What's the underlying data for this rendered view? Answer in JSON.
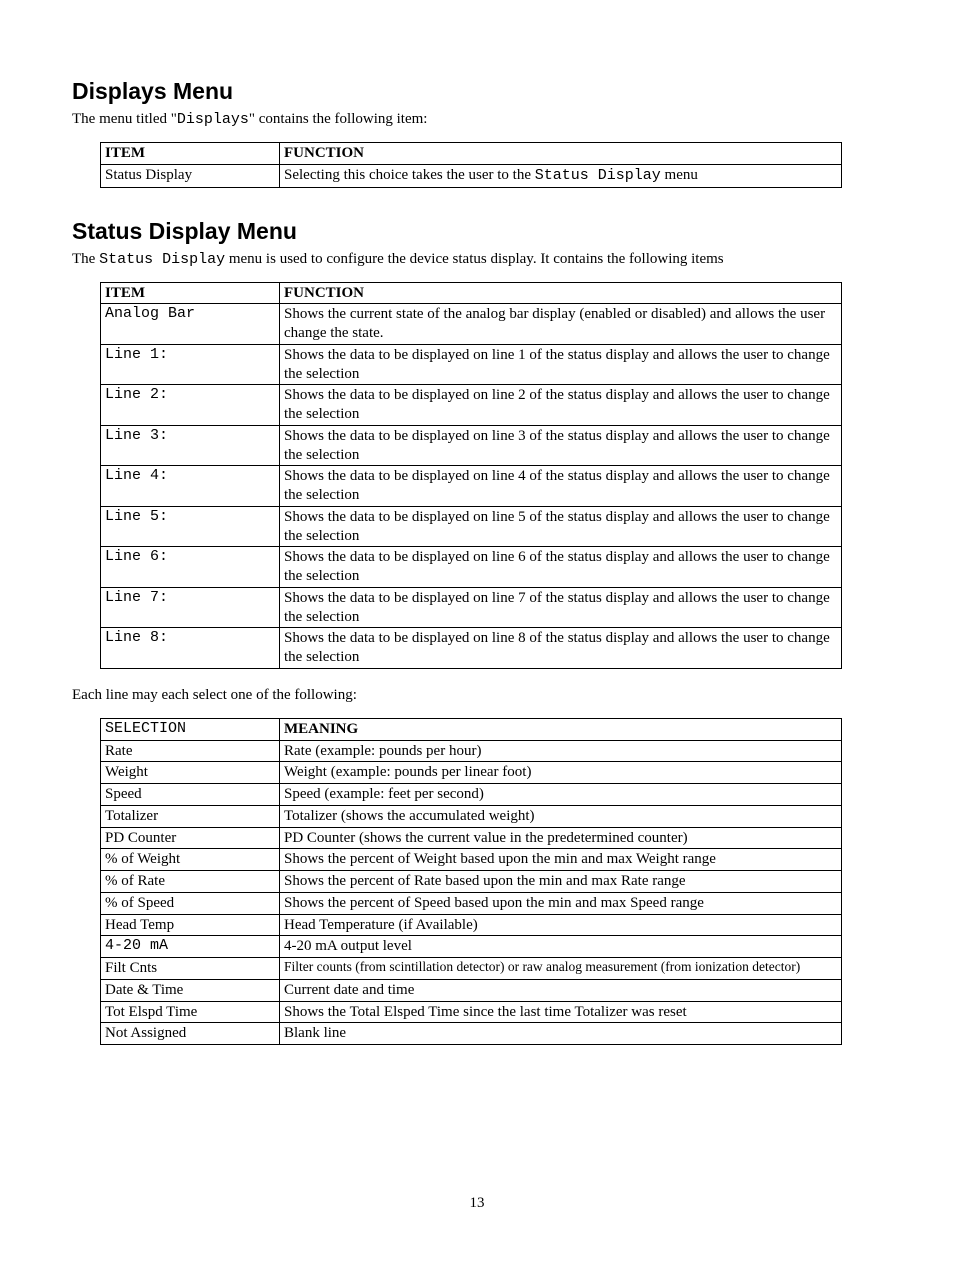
{
  "section1": {
    "title": "Displays Menu",
    "lead_pre": "The menu titled \"",
    "lead_mono": "Displays",
    "lead_post": "\" contains the following item:",
    "table": {
      "head_item": "ITEM",
      "head_func": "FUNCTION",
      "rows": [
        {
          "item": "Status Display",
          "func_pre": "Selecting this choice takes the user to the ",
          "func_mono": "Status Display",
          "func_post": "  menu"
        }
      ]
    }
  },
  "section2": {
    "title": "Status Display Menu",
    "lead_pre": "The ",
    "lead_mono": "Status Display",
    "lead_post": " menu is used to configure the device status display. It contains the following items",
    "table": {
      "head_item": "ITEM",
      "head_func": "FUNCTION",
      "rows": [
        {
          "item": "Analog Bar",
          "item_mono": true,
          "func": "Shows the current state of the analog bar display (enabled or disabled) and allows the user change the state."
        },
        {
          "item": "Line 1:",
          "item_mono": true,
          "func": "Shows the data to be displayed on line 1 of the status display and allows the user to change the selection"
        },
        {
          "item": "Line 2:",
          "item_mono": true,
          "func": "Shows the data to be displayed on line 2 of the status display and allows the user to change the selection"
        },
        {
          "item": "Line 3:",
          "item_mono": true,
          "func": "Shows the data to be displayed on line 3 of the status display and allows the user to change the selection"
        },
        {
          "item": "Line 4:",
          "item_mono": true,
          "func": "Shows the data to be displayed on line 4 of the status display and allows the user to change the selection"
        },
        {
          "item": "Line 5:",
          "item_mono": true,
          "func": "Shows the data to be displayed on line 5 of the status display and allows the user to change the selection"
        },
        {
          "item": "Line 6:",
          "item_mono": true,
          "func": "Shows the data to be displayed on line 6 of the status display and allows the user to change the selection"
        },
        {
          "item": "Line 7:",
          "item_mono": true,
          "func": "Shows the data to be displayed on line 7 of the status display and allows the user to change the selection"
        },
        {
          "item": "Line 8:",
          "item_mono": true,
          "func": "Shows the data to be displayed on line 8 of the status display and allows the user to change the selection"
        }
      ]
    }
  },
  "note": "Each line may each select one of the following:",
  "section3": {
    "table": {
      "head_sel": "SELECTION",
      "head_mean": "MEANING",
      "rows": [
        {
          "sel": "Rate",
          "sel_mono": false,
          "mean": "Rate (example: pounds per hour)"
        },
        {
          "sel": "Weight",
          "sel_mono": false,
          "mean": "Weight (example: pounds per linear foot)"
        },
        {
          "sel": "Speed",
          "sel_mono": false,
          "mean": "Speed (example: feet per second)"
        },
        {
          "sel": "Totalizer",
          "sel_mono": false,
          "mean": "Totalizer (shows the accumulated weight)"
        },
        {
          "sel": "PD Counter",
          "sel_mono": false,
          "mean": "PD Counter (shows the current value in the predetermined counter)"
        },
        {
          "sel": "% of Weight",
          "sel_mono": false,
          "mean": "Shows the percent of Weight based upon the min and max Weight range"
        },
        {
          "sel": "% of Rate",
          "sel_mono": false,
          "mean": "Shows the percent of Rate based upon the min and max Rate range"
        },
        {
          "sel": "% of Speed",
          "sel_mono": false,
          "mean": "Shows the percent of Speed based upon the min and max Speed range"
        },
        {
          "sel": "Head Temp",
          "sel_mono": false,
          "mean": "Head Temperature (if Available)"
        },
        {
          "sel": "4-20 mA",
          "sel_mono": true,
          "mean": "4-20 mA output level"
        },
        {
          "sel": "Filt Cnts",
          "sel_mono": false,
          "mean": "Filter counts (from scintillation detector) or raw analog measurement (from ionization detector)",
          "small": true
        },
        {
          "sel": "Date & Time",
          "sel_mono": false,
          "mean": "Current date and time"
        },
        {
          "sel": "Tot Elspd Time",
          "sel_mono": false,
          "mean": "Shows the Total Elsped Time since the last time Totalizer was reset"
        },
        {
          "sel": "Not Assigned",
          "sel_mono": false,
          "mean": "Blank line"
        }
      ]
    }
  },
  "page_number": "13"
}
